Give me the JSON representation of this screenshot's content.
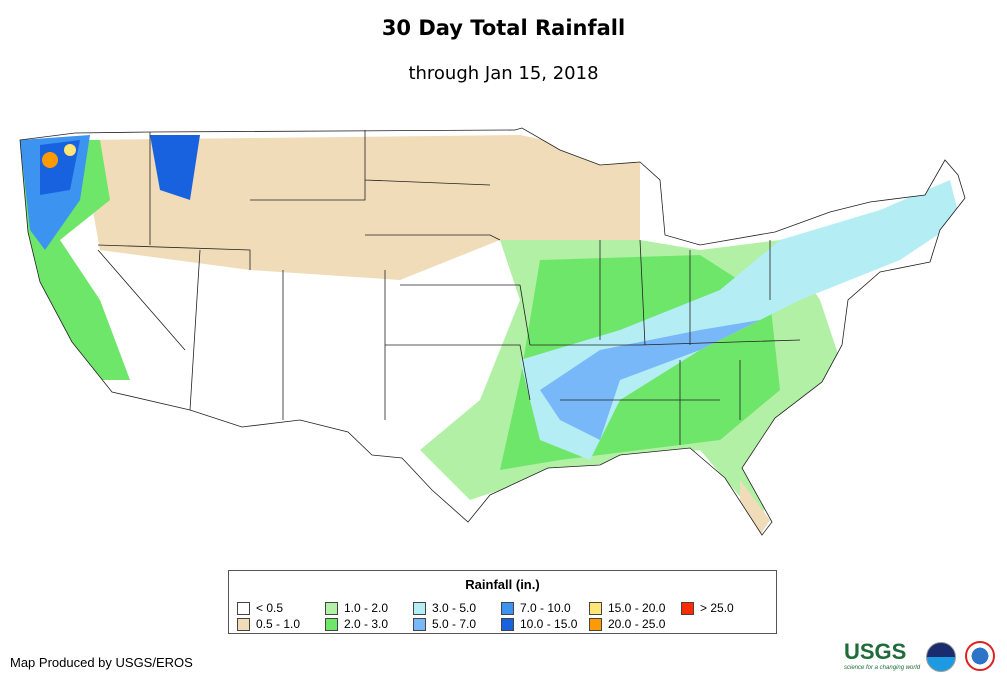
{
  "header": {
    "title": "30 Day Total Rainfall",
    "subtitle": "through Jan 15, 2018"
  },
  "legend": {
    "title": "Rainfall (in.)",
    "items": [
      {
        "label": "< 0.5",
        "color": "#ffffff"
      },
      {
        "label": "0.5 - 1.0",
        "color": "#f0dcb8"
      },
      {
        "label": "1.0 - 2.0",
        "color": "#b2f0a6"
      },
      {
        "label": "2.0 - 3.0",
        "color": "#6ee66a"
      },
      {
        "label": "3.0 - 5.0",
        "color": "#b4eef4"
      },
      {
        "label": "5.0 - 7.0",
        "color": "#78b8f8"
      },
      {
        "label": "7.0 - 10.0",
        "color": "#3c94f0"
      },
      {
        "label": "10.0 - 15.0",
        "color": "#1862e0"
      },
      {
        "label": "15.0 - 20.0",
        "color": "#ffe478"
      },
      {
        "label": "20.0 - 25.0",
        "color": "#ff9a00"
      },
      {
        "label": "> 25.0",
        "color": "#ff2a00"
      }
    ]
  },
  "footer": {
    "credit": "Map Produced by USGS/EROS",
    "usgs_logo": "USGS",
    "usgs_tagline": "science for a changing world",
    "logos": [
      "noaa-logo",
      "nws-logo"
    ]
  }
}
